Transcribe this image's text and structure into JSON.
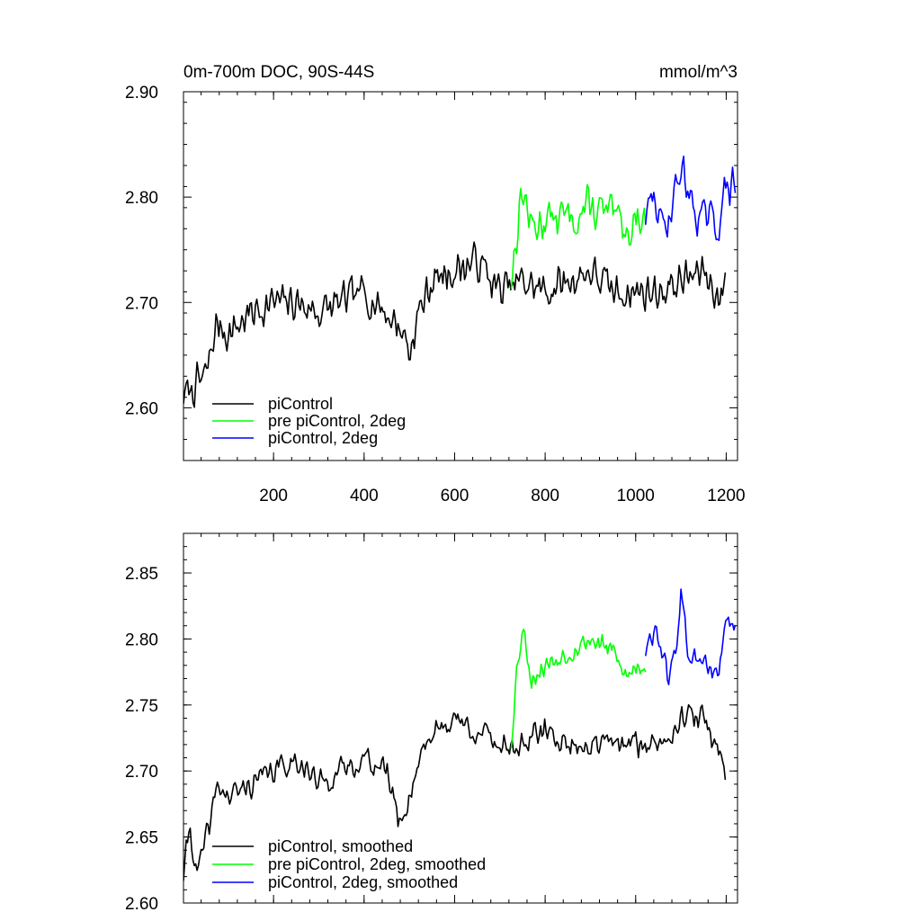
{
  "chart_data": [
    {
      "type": "line",
      "title": "0m-700m DOC, 90S-44S",
      "units": "mmol/m^3",
      "xlim": [
        1,
        1225
      ],
      "ylim": [
        2.55,
        2.9
      ],
      "x_ticks": [
        200,
        400,
        600,
        800,
        1000,
        1200
      ],
      "y_ticks": [
        2.6,
        2.7,
        2.8,
        2.9
      ],
      "y_tick_labels": [
        "2.60",
        "2.70",
        "2.80",
        "2.90"
      ],
      "x_tick_labels": [
        "200",
        "400",
        "600",
        "800",
        "1000",
        "1200"
      ],
      "legend": {
        "position": "bottom-left"
      },
      "series": [
        {
          "name": "piControl",
          "color": "#000000",
          "x": [
            1,
            50,
            75,
            100,
            150,
            200,
            250,
            300,
            350,
            400,
            450,
            490,
            500,
            520,
            550,
            600,
            650,
            700,
            750,
            800,
            850,
            900,
            950,
            1000,
            1050,
            1100,
            1150,
            1190,
            1200
          ],
          "values": [
            2.61,
            2.63,
            2.68,
            2.67,
            2.69,
            2.7,
            2.7,
            2.69,
            2.7,
            2.71,
            2.69,
            2.67,
            2.65,
            2.69,
            2.72,
            2.73,
            2.74,
            2.71,
            2.72,
            2.71,
            2.72,
            2.73,
            2.71,
            2.71,
            2.71,
            2.72,
            2.73,
            2.7,
            2.73
          ],
          "noise": 0.022,
          "seed": 7
        },
        {
          "name": "pre piControl, 2deg",
          "color": "#00ff00",
          "x": [
            725,
            735,
            750,
            770,
            800,
            850,
            900,
            950,
            980,
            1000,
            1022
          ],
          "values": [
            2.72,
            2.76,
            2.81,
            2.77,
            2.78,
            2.78,
            2.79,
            2.78,
            2.77,
            2.78,
            2.78
          ],
          "noise": 0.025,
          "seed": 13
        },
        {
          "name": "piControl, 2deg",
          "color": "#0000ff",
          "x": [
            1022,
            1040,
            1060,
            1080,
            1100,
            1120,
            1140,
            1160,
            1180,
            1200,
            1222
          ],
          "values": [
            2.78,
            2.8,
            2.77,
            2.79,
            2.83,
            2.8,
            2.78,
            2.78,
            2.77,
            2.81,
            2.81
          ],
          "noise": 0.022,
          "seed": 29
        }
      ]
    },
    {
      "type": "line",
      "title": "",
      "units": "",
      "xlim": [
        1,
        1225
      ],
      "ylim": [
        2.6,
        2.88
      ],
      "x_ticks": [
        200,
        400,
        600,
        800,
        1000,
        1200
      ],
      "y_ticks": [
        2.6,
        2.65,
        2.7,
        2.75,
        2.8,
        2.85
      ],
      "y_tick_labels": [
        "2.60",
        "2.65",
        "2.70",
        "2.75",
        "2.80",
        "2.85"
      ],
      "legend": {
        "position": "bottom-left"
      },
      "series": [
        {
          "name": "piControl, smoothed",
          "color": "#000000",
          "x": [
            1,
            15,
            30,
            45,
            60,
            75,
            100,
            150,
            200,
            250,
            300,
            350,
            400,
            450,
            480,
            500,
            530,
            560,
            600,
            650,
            700,
            750,
            800,
            850,
            900,
            950,
            1000,
            1050,
            1100,
            1150,
            1190,
            1200
          ],
          "values": [
            2.62,
            2.66,
            2.62,
            2.64,
            2.66,
            2.69,
            2.68,
            2.69,
            2.7,
            2.71,
            2.69,
            2.7,
            2.71,
            2.7,
            2.66,
            2.68,
            2.72,
            2.73,
            2.74,
            2.73,
            2.72,
            2.72,
            2.73,
            2.72,
            2.72,
            2.72,
            2.72,
            2.72,
            2.74,
            2.74,
            2.71,
            2.7
          ],
          "noise": 0.012,
          "seed": 41
        },
        {
          "name": "pre piControl, 2deg, smoothed",
          "color": "#00ff00",
          "x": [
            725,
            735,
            750,
            770,
            800,
            850,
            900,
            950,
            980,
            1000,
            1022
          ],
          "values": [
            2.72,
            2.77,
            2.81,
            2.77,
            2.78,
            2.79,
            2.8,
            2.79,
            2.77,
            2.78,
            2.78
          ],
          "noise": 0.011,
          "seed": 53
        },
        {
          "name": "piControl, 2deg, smoothed",
          "color": "#0000ff",
          "x": [
            1022,
            1045,
            1070,
            1090,
            1100,
            1115,
            1140,
            1160,
            1180,
            1200,
            1222
          ],
          "values": [
            2.79,
            2.81,
            2.77,
            2.79,
            2.84,
            2.79,
            2.78,
            2.78,
            2.77,
            2.81,
            2.81
          ],
          "noise": 0.011,
          "seed": 61
        }
      ]
    }
  ]
}
